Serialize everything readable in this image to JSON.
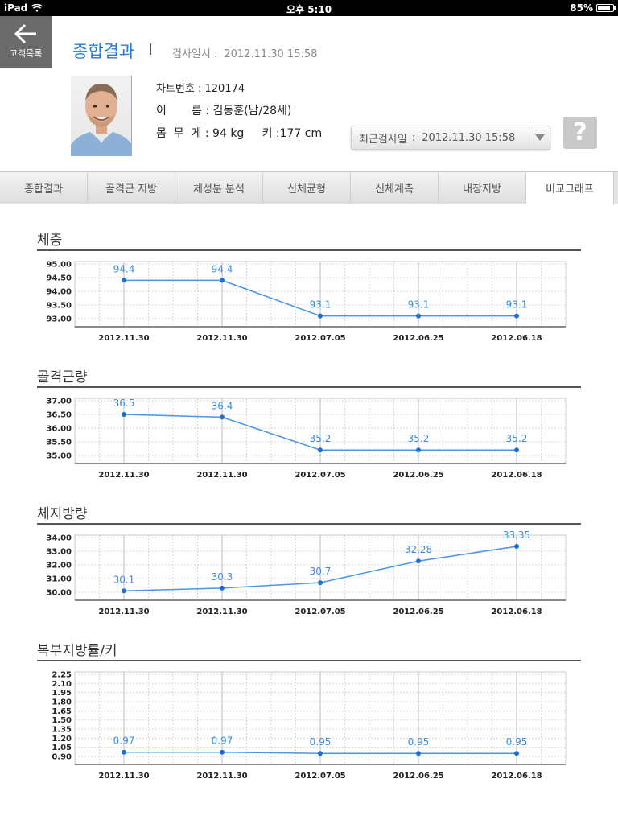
{
  "status_bar": {
    "device": "iPad",
    "time": "오후 5:10",
    "battery": "85%",
    "battery_level": 0.85
  },
  "header": {
    "back_label": "고객목록",
    "title": "종합결과",
    "exam_date_label": "검사일시 :",
    "exam_date": "2012.11.30 15:58"
  },
  "patient": {
    "chart_no": "차트번호 : 120174",
    "name": "이       름 : 김동훈(남/28세)",
    "body": "몸  무  게 : 94 kg     키 :177 cm"
  },
  "recent_exam": {
    "label": "최근검사일",
    "colon": ":",
    "value": "2012.11.30 15:58"
  },
  "help_label": "?",
  "tabs": [
    {
      "label": "종합결과",
      "active": false
    },
    {
      "label": "골격근 지방",
      "active": false
    },
    {
      "label": "체성분 분석",
      "active": false
    },
    {
      "label": "신체균형",
      "active": false
    },
    {
      "label": "신체계측",
      "active": false
    },
    {
      "label": "내장지방",
      "active": false
    },
    {
      "label": "비교그래프",
      "active": true
    }
  ],
  "colors": {
    "accent": "#2a7bd3",
    "line": "#4a95e6",
    "grid": "#d8d8d8"
  },
  "chart_data": [
    {
      "type": "line",
      "title": "체중",
      "categories": [
        "2012.11.30",
        "2012.11.30",
        "2012.07.05",
        "2012.06.25",
        "2012.06.18"
      ],
      "values": [
        94.4,
        94.4,
        93.1,
        93.1,
        93.1
      ],
      "value_labels": [
        "94.4",
        "94.4",
        "93.1",
        "93.1",
        "93.1"
      ],
      "yticks": [
        "95.00",
        "94.50",
        "94.00",
        "93.50",
        "93.00"
      ],
      "ylim": [
        93.0,
        95.0
      ],
      "grid": true
    },
    {
      "type": "line",
      "title": "골격근량",
      "categories": [
        "2012.11.30",
        "2012.11.30",
        "2012.07.05",
        "2012.06.25",
        "2012.06.18"
      ],
      "values": [
        36.5,
        36.4,
        35.2,
        35.2,
        35.2
      ],
      "value_labels": [
        "36.5",
        "36.4",
        "35.2",
        "35.2",
        "35.2"
      ],
      "yticks": [
        "37.00",
        "36.50",
        "36.00",
        "35.50",
        "35.00"
      ],
      "ylim": [
        35.0,
        37.0
      ],
      "grid": true
    },
    {
      "type": "line",
      "title": "체지방량",
      "categories": [
        "2012.11.30",
        "2012.11.30",
        "2012.07.05",
        "2012.06.25",
        "2012.06.18"
      ],
      "values": [
        30.1,
        30.3,
        30.7,
        32.28,
        33.35
      ],
      "value_labels": [
        "30.1",
        "30.3",
        "30.7",
        "32.28",
        "33.35"
      ],
      "yticks": [
        "34.00",
        "33.00",
        "32.00",
        "31.00",
        "30.00"
      ],
      "ylim": [
        30.0,
        34.0
      ],
      "grid": true
    },
    {
      "type": "line",
      "title": "복부지방률/키",
      "categories": [
        "2012.11.30",
        "2012.11.30",
        "2012.07.05",
        "2012.06.25",
        "2012.06.18"
      ],
      "values": [
        0.97,
        0.97,
        0.95,
        0.95,
        0.95
      ],
      "value_labels": [
        "0.97",
        "0.97",
        "0.95",
        "0.95",
        "0.95"
      ],
      "yticks": [
        "2.25",
        "2.10",
        "1.95",
        "1.80",
        "1.65",
        "1.50",
        "1.35",
        "1.20",
        "1.05",
        "0.90"
      ],
      "ylim": [
        0.9,
        2.25
      ],
      "grid": true
    }
  ]
}
